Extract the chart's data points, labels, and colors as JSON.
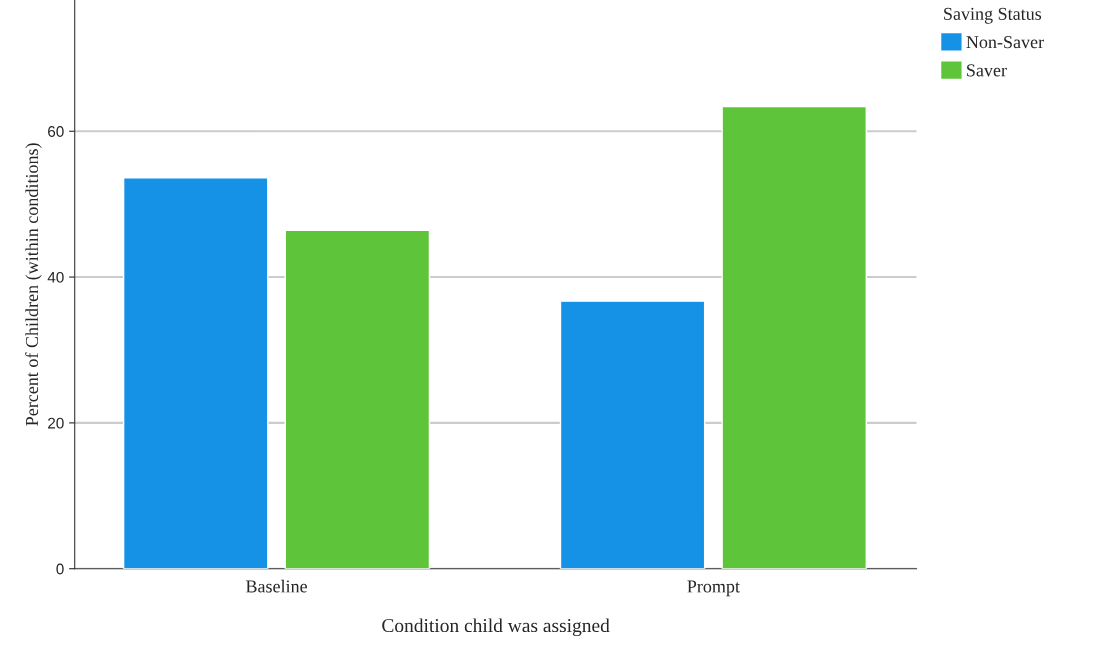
{
  "chart_data": {
    "type": "bar",
    "xlabel": "Condition child was assigned",
    "ylabel": "Percent of Children (within conditions)",
    "legend_title": "Saving Status",
    "categories": [
      "Baseline",
      "Prompt"
    ],
    "series": [
      {
        "name": "Non-Saver",
        "color": "#1592e6",
        "values": [
          53.6,
          36.7
        ]
      },
      {
        "name": "Saver",
        "color": "#5ec43a",
        "values": [
          46.4,
          63.4
        ]
      }
    ],
    "ylim": [
      0,
      78
    ],
    "yticks": [
      0,
      20,
      40,
      60
    ],
    "grid": "y",
    "legend": "top right"
  }
}
